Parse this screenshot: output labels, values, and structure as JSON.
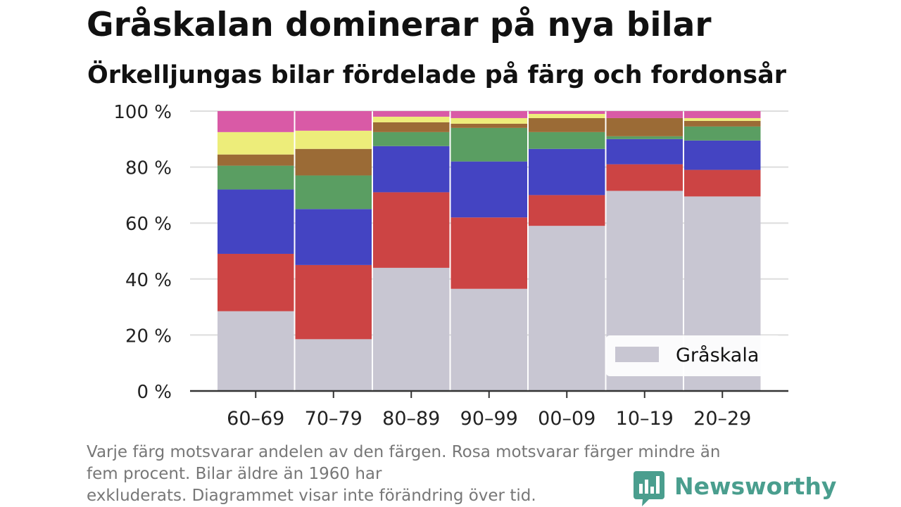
{
  "title": "Gråskalan dominerar på nya bilar",
  "subtitle": "Örkelljungas bilar fördelade på färg och fordonsår",
  "footnote": {
    "line1": "Varje färg motsvarar andelen av den färgen. Rosa motsvarar färger mindre än",
    "line2": "fem procent. Bilar äldre än 1960 har",
    "line3": "exkluderats. Diagrammet visar inte förändring över tid."
  },
  "logo": {
    "text": "Newsworthy",
    "icon": "newsworthy-bar-chart-icon"
  },
  "chart_data": {
    "type": "bar",
    "stacked": true,
    "categories": [
      "60–69",
      "70–79",
      "80–89",
      "90–99",
      "00–09",
      "10–19",
      "20–29"
    ],
    "series": [
      {
        "name": "Gråskala",
        "color": "#c8c6d2",
        "values": [
          28.5,
          18.5,
          44,
          36.5,
          59,
          71.5,
          69.5
        ]
      },
      {
        "color": "#cc4444",
        "values": [
          20.5,
          26.5,
          27,
          25.5,
          11,
          9.5,
          9.5
        ]
      },
      {
        "color": "#4444c2",
        "values": [
          23,
          20,
          16.5,
          20,
          16.5,
          9,
          10.5
        ]
      },
      {
        "color": "#5a9e62",
        "values": [
          8.5,
          12,
          5,
          12,
          6,
          1,
          5
        ]
      },
      {
        "color": "#9b6b36",
        "values": [
          4,
          9.5,
          3.5,
          1.5,
          5,
          6.5,
          2
        ]
      },
      {
        "color": "#eded7a",
        "values": [
          8,
          6.5,
          2,
          2,
          1.5,
          0,
          1
        ]
      },
      {
        "color": "#d95aa6",
        "values": [
          7.5,
          7,
          2,
          2.5,
          1,
          2.5,
          2.5
        ]
      }
    ],
    "ylim": [
      0,
      100
    ],
    "yticks": [
      0,
      20,
      40,
      60,
      80,
      100
    ],
    "ytick_labels": [
      "0 %",
      "20 %",
      "40 %",
      "60 %",
      "80 %",
      "100 %"
    ],
    "xlabel": "",
    "ylabel": "",
    "grid": true,
    "legend_position": "bottom-right"
  }
}
